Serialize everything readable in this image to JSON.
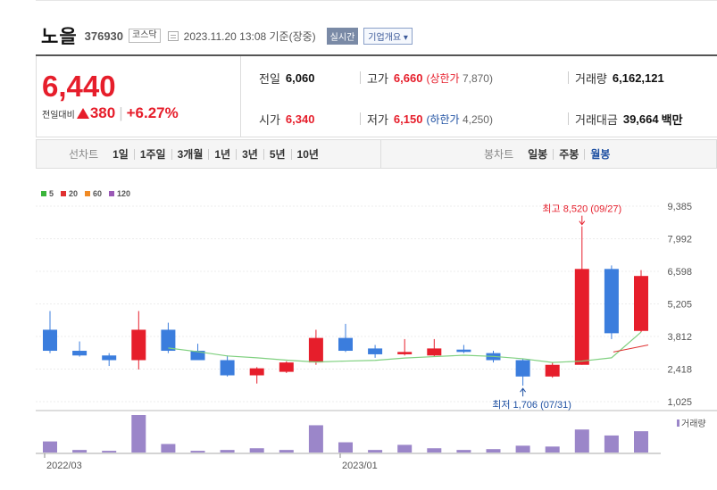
{
  "header": {
    "name": "노을",
    "code": "376930",
    "market": "코스닥",
    "datetime": "2023.11.20 13:08 기준(장중)",
    "realtime_label": "실시간",
    "company_btn": "기업개요 ▾"
  },
  "quote": {
    "price": "6,440",
    "change_label": "전일대비",
    "change": "380",
    "change_pct": "+6.27%",
    "prev_label": "전일",
    "prev": "6,060",
    "high_label": "고가",
    "high": "6,660",
    "upper_limit_label": "(상한가",
    "upper_limit": "7,870)",
    "volume_label": "거래량",
    "volume": "6,162,121",
    "open_label": "시가",
    "open": "6,340",
    "low_label": "저가",
    "low": "6,150",
    "lower_limit_label": "(하한가",
    "lower_limit": "4,250)",
    "amount_label": "거래대금",
    "amount": "39,664",
    "amount_unit": "백만"
  },
  "tabs": {
    "line_label": "선차트",
    "line": [
      "1일",
      "1주일",
      "3개월",
      "1년",
      "3년",
      "5년",
      "10년"
    ],
    "candle_label": "봉차트",
    "candle": [
      "일봉",
      "주봉",
      "월봉"
    ],
    "candle_selected": 2
  },
  "colors": {
    "up": "#e61e2b",
    "down": "#3b7ddd",
    "ma5": "#7fd07f",
    "ma20": "#e03030",
    "ma60": "#f08a24",
    "ma120": "#9b59b6",
    "volume": "#9b86c9"
  },
  "chart_data": {
    "type": "candlestick",
    "legend": [
      {
        "name": "5",
        "color": "#3bb53b"
      },
      {
        "name": "20",
        "color": "#e03030"
      },
      {
        "name": "60",
        "color": "#f08a24"
      },
      {
        "name": "120",
        "color": "#9b59b6"
      }
    ],
    "y_ticks": [
      "9,385",
      "7,992",
      "6,598",
      "5,205",
      "3,812",
      "2,418",
      "1,025"
    ],
    "ylim": [
      1025,
      9385
    ],
    "x_ticks": [
      {
        "label": "2022/03",
        "index": 0
      },
      {
        "label": "2023/01",
        "index": 10
      }
    ],
    "candles": [
      {
        "o": 4100,
        "h": 4900,
        "l": 3100,
        "c": 3200
      },
      {
        "o": 3200,
        "h": 3600,
        "l": 2950,
        "c": 3000
      },
      {
        "o": 3000,
        "h": 3100,
        "l": 2550,
        "c": 2800
      },
      {
        "o": 2800,
        "h": 4900,
        "l": 2400,
        "c": 4100
      },
      {
        "o": 4100,
        "h": 4400,
        "l": 3100,
        "c": 3200
      },
      {
        "o": 3200,
        "h": 3500,
        "l": 2800,
        "c": 2800
      },
      {
        "o": 2800,
        "h": 3000,
        "l": 2100,
        "c": 2150
      },
      {
        "o": 2150,
        "h": 2500,
        "l": 1800,
        "c": 2450
      },
      {
        "o": 2300,
        "h": 2750,
        "l": 2250,
        "c": 2700
      },
      {
        "o": 2700,
        "h": 4100,
        "l": 2600,
        "c": 3750
      },
      {
        "o": 3750,
        "h": 4350,
        "l": 3150,
        "c": 3200
      },
      {
        "o": 3300,
        "h": 3450,
        "l": 2900,
        "c": 3050
      },
      {
        "o": 3050,
        "h": 3700,
        "l": 3000,
        "c": 3150
      },
      {
        "o": 3000,
        "h": 3700,
        "l": 2950,
        "c": 3300
      },
      {
        "o": 3250,
        "h": 3450,
        "l": 3100,
        "c": 3150
      },
      {
        "o": 3100,
        "h": 3200,
        "l": 2700,
        "c": 2800
      },
      {
        "o": 2800,
        "h": 2850,
        "l": 1706,
        "c": 2100
      },
      {
        "o": 2100,
        "h": 2700,
        "l": 2050,
        "c": 2600
      },
      {
        "o": 2600,
        "h": 8520,
        "l": 2600,
        "c": 6700
      },
      {
        "o": 6700,
        "h": 6850,
        "l": 3700,
        "c": 3950
      },
      {
        "o": 4050,
        "h": 6650,
        "l": 4000,
        "c": 6400
      }
    ],
    "ma5": [
      null,
      null,
      null,
      null,
      3320,
      3160,
      2980,
      2900,
      2800,
      2720,
      2760,
      2790,
      2890,
      2950,
      3010,
      2960,
      2860,
      2700,
      2760,
      2900,
      4000
    ],
    "ma20_tail": [
      3150,
      3450
    ],
    "volumes": [
      13,
      3,
      2,
      44,
      10,
      2,
      3,
      5,
      3,
      32,
      12,
      3,
      9,
      5,
      3,
      4,
      8,
      7,
      27,
      20,
      25
    ],
    "volume_label": "거래량",
    "high_annotation": "최고 8,520 (09/27)",
    "low_annotation": "최저 1,706 (07/31)"
  }
}
